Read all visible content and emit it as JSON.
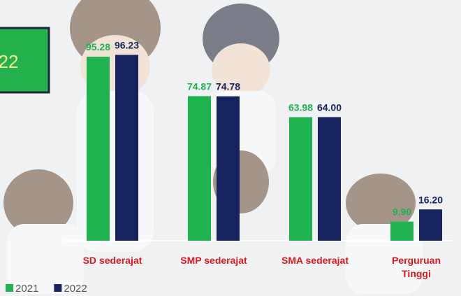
{
  "chart_data": {
    "type": "bar",
    "annotations": [
      "22"
    ],
    "categories": [
      "SD sederajat",
      "SMP sederajat",
      "SMA sederajat",
      "Perguruan Tinggi"
    ],
    "series": [
      {
        "name": "2021",
        "color": "#1fb34f",
        "values": [
          95.28,
          74.87,
          63.98,
          9.9
        ],
        "value_labels": [
          "95.28",
          "74.87",
          "63.98",
          "9.90"
        ]
      },
      {
        "name": "2022",
        "color": "#15235e",
        "values": [
          96.23,
          74.78,
          64.0,
          16.2
        ],
        "value_labels": [
          "96.23",
          "74.78",
          "64.00",
          "16.20"
        ]
      }
    ]
  }
}
